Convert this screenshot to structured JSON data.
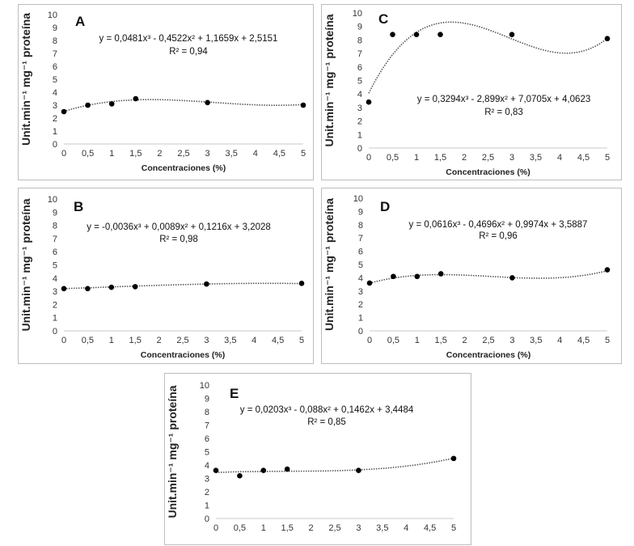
{
  "figure": {
    "x_axis_label": "Concentraciones (%)",
    "y_axis_label": "Unit.min⁻¹ mg⁻¹ proteína"
  },
  "chart_data": [
    {
      "type": "scatter",
      "panel": "A",
      "x": [
        0,
        0.5,
        1,
        1.5,
        3,
        5
      ],
      "y": [
        2.5,
        3.0,
        3.1,
        3.5,
        3.2,
        3.0
      ],
      "coeffs": [
        0.0481,
        -0.4522,
        1.1659,
        2.5151
      ],
      "equation": "y = 0,0481x³ - 0,4522x² + 1,1659x + 2,5151",
      "r2": "R² = 0,94",
      "xlabel": "Concentraciones (%)",
      "ylabel": "Unit.min⁻¹ mg⁻¹ proteína",
      "xlim": [
        0,
        5
      ],
      "ylim": [
        0,
        10
      ],
      "xticks": [
        "0",
        "0,5",
        "1",
        "1,5",
        "2",
        "2,5",
        "3",
        "3,5",
        "4",
        "4,5",
        "5"
      ],
      "yticks": [
        "0",
        "1",
        "2",
        "3",
        "4",
        "5",
        "6",
        "7",
        "8",
        "9",
        "10"
      ]
    },
    {
      "type": "scatter",
      "panel": "C",
      "x": [
        0,
        0.5,
        1,
        1.5,
        3,
        5
      ],
      "y": [
        3.4,
        8.4,
        8.4,
        8.4,
        8.4,
        8.1
      ],
      "coeffs": [
        0.3294,
        -2.899,
        7.0705,
        4.0623
      ],
      "equation": "y = 0,3294x³ - 2,899x² + 7,0705x + 4,0623",
      "r2": "R² = 0,83",
      "xlabel": "Concentraciones (%)",
      "ylabel": "Unit.min⁻¹ mg⁻¹ proteína",
      "xlim": [
        0,
        5
      ],
      "ylim": [
        0,
        10
      ],
      "xticks": [
        "0",
        "0,5",
        "1",
        "1,5",
        "2",
        "2,5",
        "3",
        "3,5",
        "4",
        "4,5",
        "5"
      ],
      "yticks": [
        "0",
        "1",
        "2",
        "3",
        "4",
        "5",
        "6",
        "7",
        "8",
        "9",
        "10"
      ]
    },
    {
      "type": "scatter",
      "panel": "B",
      "x": [
        0,
        0.5,
        1,
        1.5,
        3,
        5
      ],
      "y": [
        3.2,
        3.2,
        3.3,
        3.35,
        3.55,
        3.6
      ],
      "coeffs": [
        -0.0036,
        0.0089,
        0.1216,
        3.2028
      ],
      "equation": "y = -0,0036x³ + 0,0089x² + 0,1216x + 3,2028",
      "r2": "R² = 0,98",
      "xlabel": "Concentraciones (%)",
      "ylabel": "Unit.min⁻¹ mg⁻¹ proteína",
      "xlim": [
        0,
        5
      ],
      "ylim": [
        0,
        10
      ],
      "xticks": [
        "0",
        "0,5",
        "1",
        "1,5",
        "2",
        "2,5",
        "3",
        "3,5",
        "4",
        "4,5",
        "5"
      ],
      "yticks": [
        "0",
        "1",
        "2",
        "3",
        "4",
        "5",
        "6",
        "7",
        "8",
        "9",
        "10"
      ]
    },
    {
      "type": "scatter",
      "panel": "D",
      "x": [
        0,
        0.5,
        1,
        1.5,
        3,
        5
      ],
      "y": [
        3.6,
        4.1,
        4.1,
        4.3,
        4.0,
        4.6
      ],
      "coeffs": [
        0.0616,
        -0.4696,
        0.9974,
        3.5887
      ],
      "equation": "y = 0,0616x³ - 0,4696x² + 0,9974x + 3,5887",
      "r2": "R² = 0,96",
      "xlabel": "Concentraciones (%)",
      "ylabel": "Unit.min⁻¹ mg⁻¹ proteína",
      "xlim": [
        0,
        5
      ],
      "ylim": [
        0,
        10
      ],
      "xticks": [
        "0",
        "0,5",
        "1",
        "1,5",
        "2",
        "2,5",
        "3",
        "3,5",
        "4",
        "4,5",
        "5"
      ],
      "yticks": [
        "0",
        "1",
        "2",
        "3",
        "4",
        "5",
        "6",
        "7",
        "8",
        "9",
        "10"
      ]
    },
    {
      "type": "scatter",
      "panel": "E",
      "x": [
        0,
        0.5,
        1,
        1.5,
        3,
        5
      ],
      "y": [
        3.6,
        3.2,
        3.6,
        3.7,
        3.6,
        4.5
      ],
      "coeffs": [
        0.0203,
        -0.088,
        0.1462,
        3.4484
      ],
      "equation": "y = 0,0203x³ - 0,088x² + 0,1462x + 3,4484",
      "r2": "R² = 0,85",
      "xlabel": "",
      "ylabel": "Unit.min⁻¹ mg⁻¹ proteína",
      "xlim": [
        0,
        5
      ],
      "ylim": [
        0,
        10
      ],
      "xticks": [
        "0",
        "0,5",
        "1",
        "1,5",
        "2",
        "2,5",
        "3",
        "3,5",
        "4",
        "4,5",
        "5"
      ],
      "yticks": [
        "0",
        "1",
        "2",
        "3",
        "4",
        "5",
        "6",
        "7",
        "8",
        "9",
        "10"
      ]
    }
  ]
}
